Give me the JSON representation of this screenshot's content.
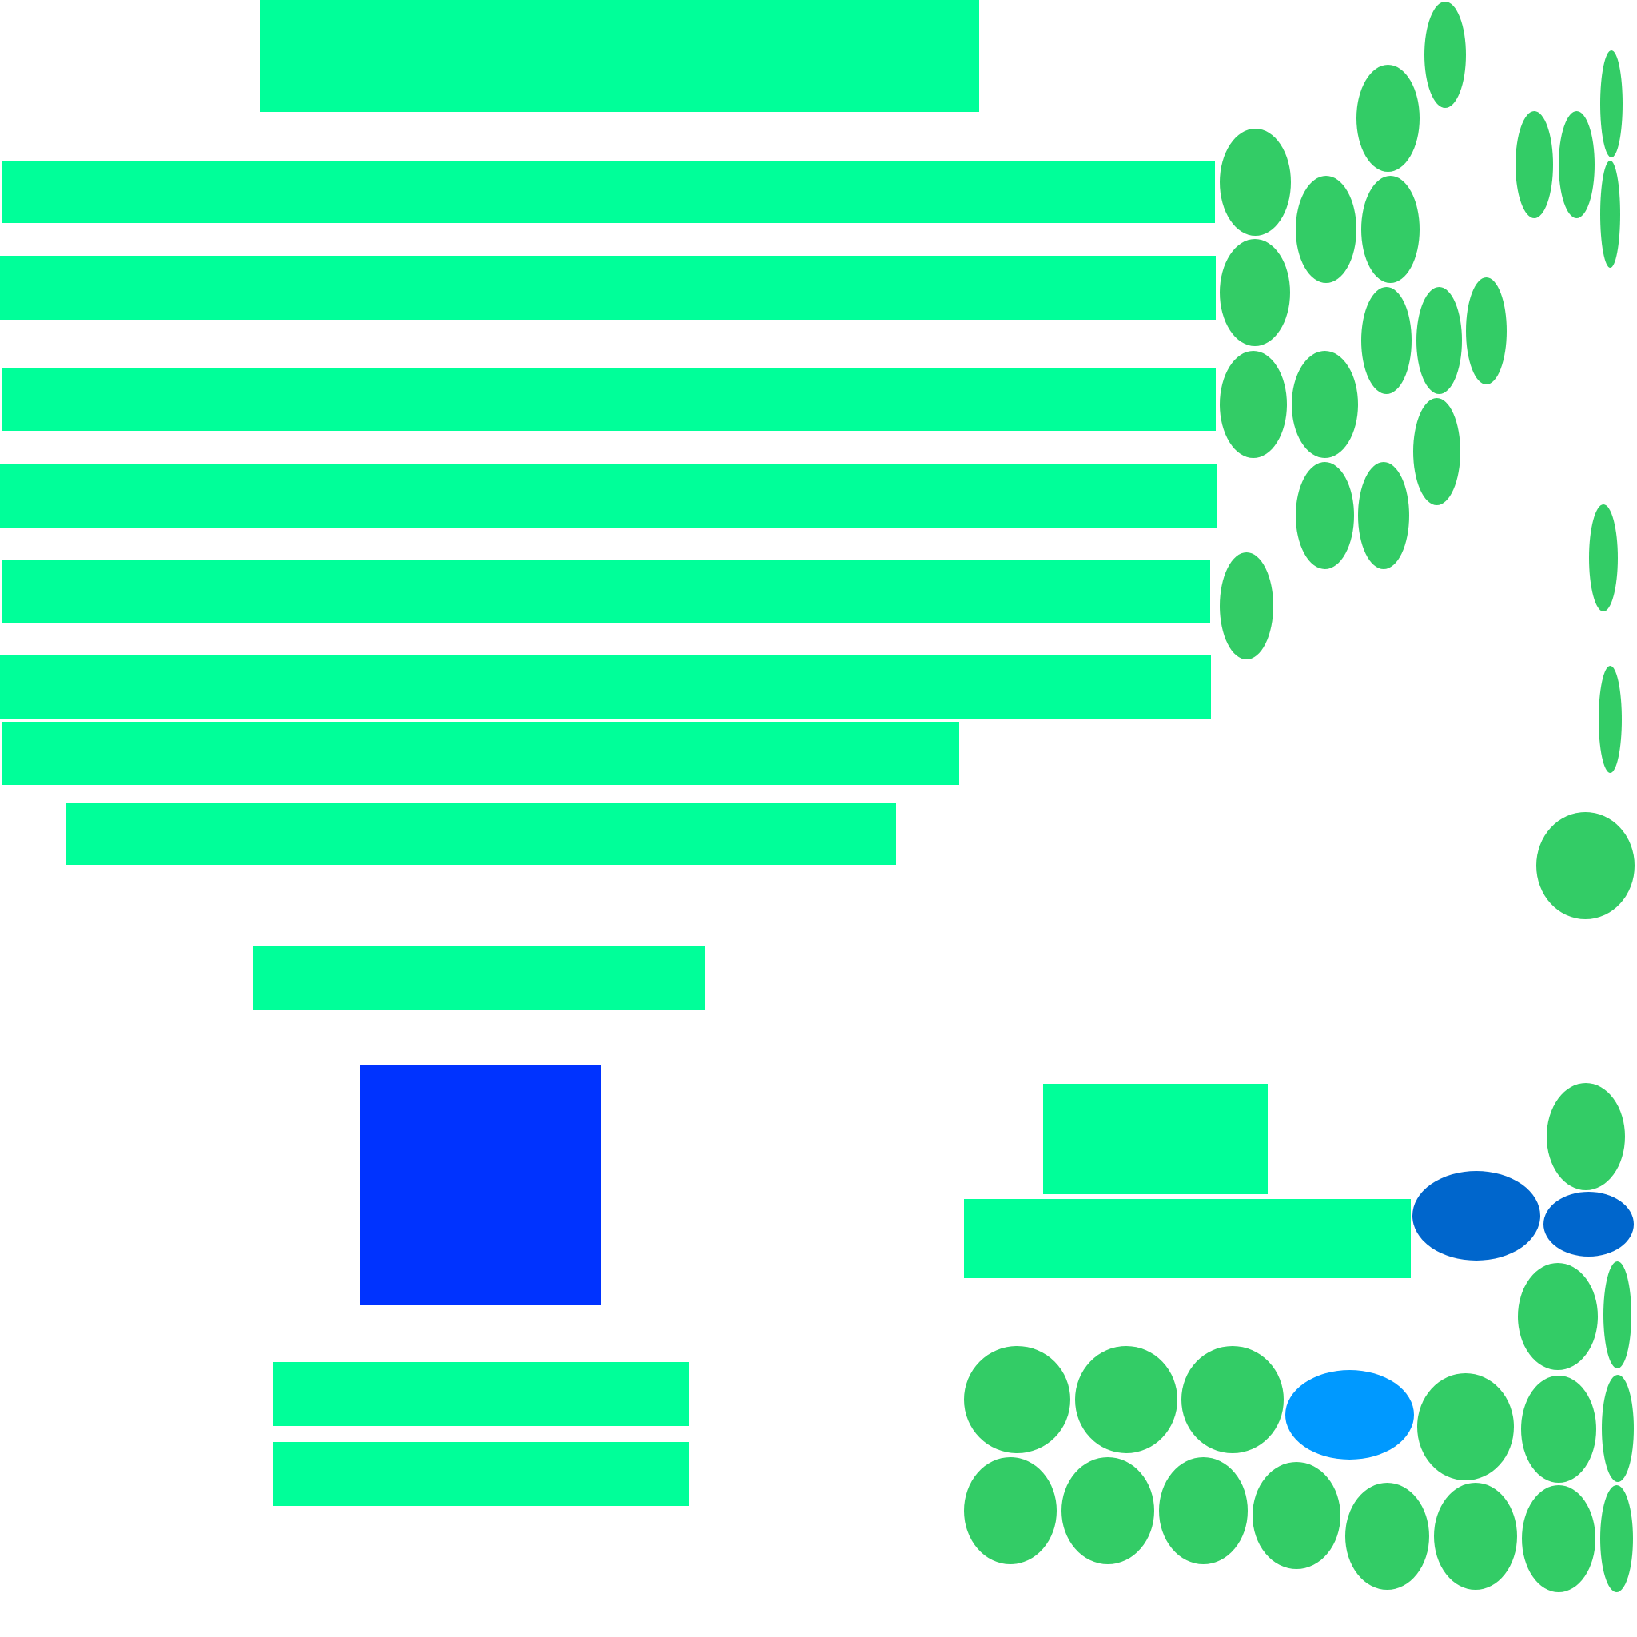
{
  "colors": {
    "background": "#ffffff",
    "block": "#00ff99",
    "dot": "#33cc66",
    "dot_dark_blue": "#0066cc",
    "dot_light_blue": "#0099ff",
    "square": "#0033ff"
  }
}
